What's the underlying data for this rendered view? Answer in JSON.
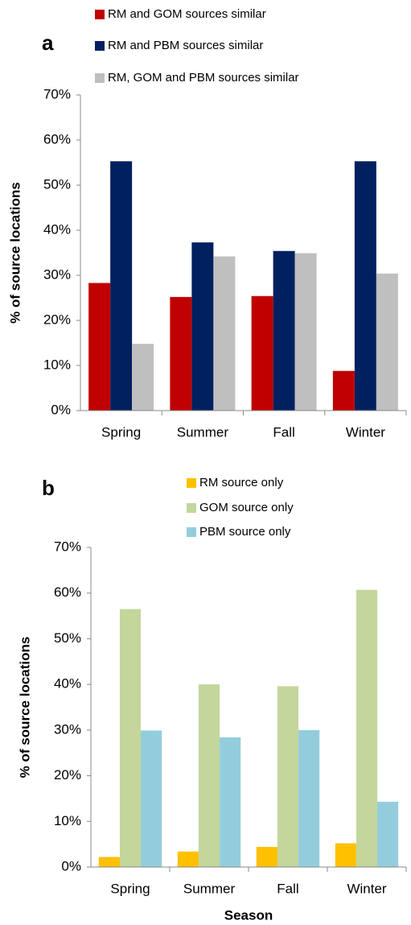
{
  "chart_data": [
    {
      "type": "bar",
      "panel": "a",
      "ylabel": "% of source locations",
      "categories": [
        "Spring",
        "Summer",
        "Fall",
        "Winter"
      ],
      "series": [
        {
          "name": "RM and GOM sources similar",
          "color": "#c00000",
          "values": [
            28.3,
            25.2,
            25.4,
            8.8
          ]
        },
        {
          "name": "RM and PBM sources similar",
          "color": "#002060",
          "values": [
            55.3,
            37.3,
            35.4,
            55.3
          ]
        },
        {
          "name": "RM, GOM and PBM sources similar",
          "color": "#bfbfbf",
          "values": [
            14.8,
            34.2,
            34.9,
            30.4
          ]
        }
      ],
      "ylim": [
        0,
        70
      ],
      "yticks": [
        {
          "value": 0,
          "label": "0%"
        },
        {
          "value": 10,
          "label": "10%"
        },
        {
          "value": 20,
          "label": "20%"
        },
        {
          "value": 30,
          "label": "30%"
        },
        {
          "value": 40,
          "label": "40%"
        },
        {
          "value": 50,
          "label": "50%"
        },
        {
          "value": 60,
          "label": "60%"
        },
        {
          "value": 70,
          "label": "70%"
        }
      ]
    },
    {
      "type": "bar",
      "panel": "b",
      "ylabel": "% of source locations",
      "xlabel": "Season",
      "categories": [
        "Spring",
        "Summer",
        "Fall",
        "Winter"
      ],
      "series": [
        {
          "name": "RM source only",
          "color": "#ffc000",
          "values": [
            2.2,
            3.4,
            4.4,
            5.2
          ]
        },
        {
          "name": "GOM source only",
          "color": "#c3d69b",
          "values": [
            56.5,
            40.0,
            39.6,
            60.7
          ]
        },
        {
          "name": "PBM source only",
          "color": "#93cddd",
          "values": [
            29.9,
            28.4,
            30.0,
            14.3
          ]
        }
      ],
      "ylim": [
        0,
        70
      ],
      "yticks": [
        {
          "value": 0,
          "label": "0%"
        },
        {
          "value": 10,
          "label": "10%"
        },
        {
          "value": 20,
          "label": "20%"
        },
        {
          "value": 30,
          "label": "30%"
        },
        {
          "value": 40,
          "label": "40%"
        },
        {
          "value": 50,
          "label": "50%"
        },
        {
          "value": 60,
          "label": "60%"
        },
        {
          "value": 70,
          "label": "70%"
        }
      ]
    }
  ]
}
